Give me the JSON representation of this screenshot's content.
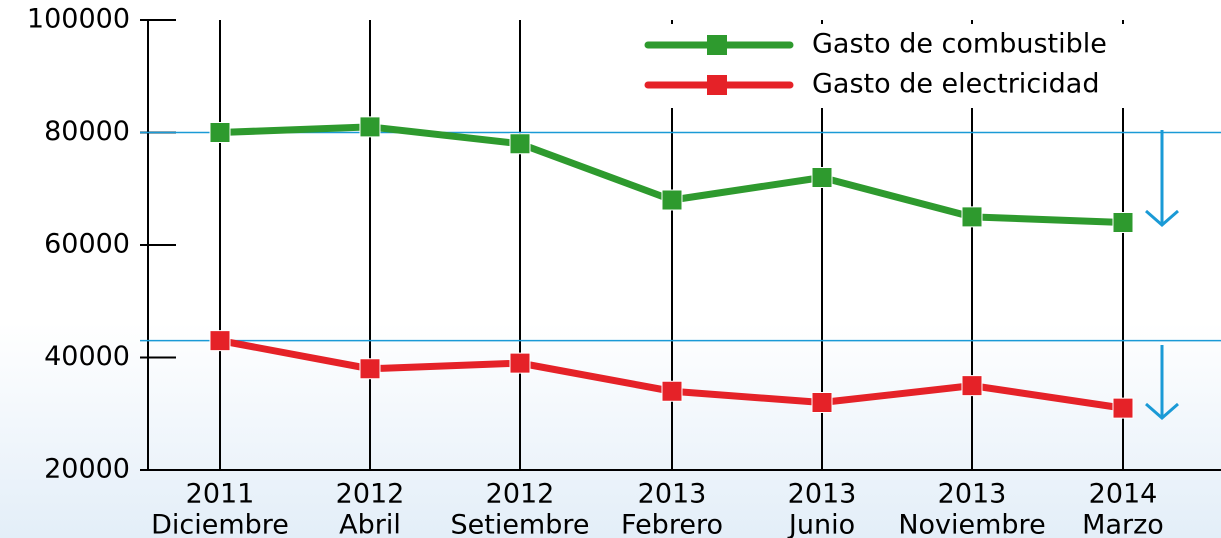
{
  "chart_data": {
    "type": "line",
    "categories": [
      [
        "2011",
        "Diciembre"
      ],
      [
        "2012",
        "Abril"
      ],
      [
        "2012",
        "Setiembre"
      ],
      [
        "2013",
        "Febrero"
      ],
      [
        "2013",
        "Junio"
      ],
      [
        "2013",
        "Noviembre"
      ],
      [
        "2014",
        "Marzo"
      ]
    ],
    "series": [
      {
        "name": "Gasto de combustible",
        "color": "#2e9a2e",
        "values": [
          80000,
          81000,
          78000,
          68000,
          72000,
          65000,
          64000
        ]
      },
      {
        "name": "Gasto de electricidad",
        "color": "#e52228",
        "values": [
          43000,
          38000,
          39000,
          34000,
          32000,
          35000,
          31000
        ]
      }
    ],
    "ylim": [
      20000,
      100000
    ],
    "yticks": [
      20000,
      40000,
      60000,
      80000,
      100000
    ],
    "reference_lines": [
      80000,
      43000
    ],
    "reference_color": "#1a9ad6"
  }
}
